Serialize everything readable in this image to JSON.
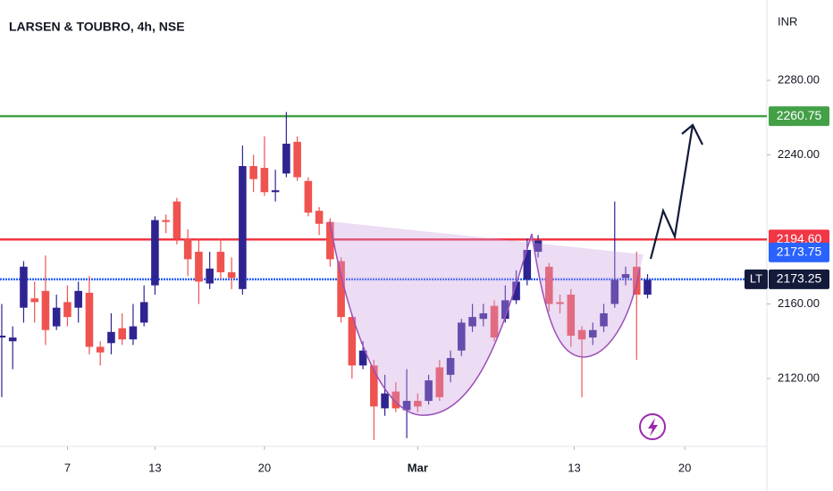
{
  "chart_data": {
    "type": "candlestick",
    "title": "LARSEN & TOUBRO, 4h, NSE",
    "currency": "INR",
    "symbol": "LT",
    "up_color": "#2e2491",
    "down_color": "#ef5350",
    "open": [
      2142,
      2140,
      2158,
      2163,
      2167,
      2148,
      2161,
      2158,
      2166,
      2137,
      2139,
      2147,
      2141,
      2150,
      2170,
      2205,
      2215,
      2195,
      2188,
      2171,
      2188,
      2177,
      2168,
      2234,
      2233,
      2220,
      2230,
      2247,
      2226,
      2210,
      2204,
      2183,
      2153,
      2127,
      2127,
      2104,
      2113,
      2103,
      2108,
      2108,
      2126,
      2122,
      2135,
      2148,
      2152,
      2159,
      2152,
      2162,
      2173,
      2188,
      2180,
      2161,
      2165,
      2146,
      2142,
      2148,
      2160,
      2174,
      2180,
      2165
    ],
    "high": [
      2160,
      2148,
      2183,
      2172,
      2186,
      2165,
      2170,
      2172,
      2175,
      2140,
      2155,
      2155,
      2160,
      2170,
      2207,
      2208,
      2217,
      2200,
      2195,
      2188,
      2195,
      2185,
      2245,
      2240,
      2250,
      2232,
      2263,
      2250,
      2228,
      2212,
      2206,
      2185,
      2155,
      2140,
      2130,
      2122,
      2118,
      2125,
      2112,
      2122,
      2130,
      2135,
      2152,
      2160,
      2160,
      2162,
      2170,
      2178,
      2195,
      2197,
      2182,
      2165,
      2168,
      2148,
      2150,
      2160,
      2215,
      2180,
      2188,
      2176
    ],
    "low": [
      2110,
      2125,
      2150,
      2150,
      2138,
      2146,
      2148,
      2150,
      2133,
      2127,
      2133,
      2138,
      2138,
      2148,
      2165,
      2198,
      2192,
      2175,
      2160,
      2168,
      2173,
      2168,
      2165,
      2220,
      2218,
      2215,
      2228,
      2226,
      2207,
      2197,
      2180,
      2150,
      2120,
      2125,
      2087,
      2100,
      2102,
      2088,
      2102,
      2106,
      2108,
      2118,
      2132,
      2145,
      2148,
      2140,
      2150,
      2160,
      2170,
      2185,
      2156,
      2155,
      2137,
      2110,
      2138,
      2145,
      2158,
      2170,
      2130,
      2163
    ],
    "close": [
      2143,
      2142,
      2180,
      2161,
      2146,
      2158,
      2153,
      2167,
      2137,
      2134,
      2145,
      2141,
      2148,
      2161,
      2205,
      2204,
      2195,
      2184,
      2172,
      2179,
      2177,
      2174,
      2234,
      2227,
      2220,
      2221,
      2246,
      2228,
      2209,
      2203,
      2184,
      2153,
      2127,
      2135,
      2105,
      2112,
      2104,
      2108,
      2105,
      2119,
      2110,
      2131,
      2150,
      2153,
      2155,
      2142,
      2162,
      2172,
      2189,
      2194,
      2160,
      2160,
      2143,
      2141,
      2146,
      2155,
      2173,
      2176,
      2165,
      2173
    ],
    "xlim": [
      -0.16,
      69.9
    ],
    "xticks": [
      {
        "value": 6,
        "label": "7"
      },
      {
        "value": 14,
        "label": "13"
      },
      {
        "value": 24,
        "label": "20"
      },
      {
        "value": 38,
        "label": "Mar"
      },
      {
        "value": 52.3,
        "label": "13"
      },
      {
        "value": 62.4,
        "label": "20"
      }
    ],
    "ylim": [
      2083.6,
      2323.1
    ],
    "yticks": [
      {
        "value": 2120,
        "label": "2120.00"
      },
      {
        "value": 2160,
        "label": "2160.00"
      },
      {
        "value": 2240,
        "label": "2240.00"
      },
      {
        "value": 2280,
        "label": "2280.00"
      }
    ],
    "levels": [
      {
        "value": 2260.75,
        "color": "#43a047"
      },
      {
        "value": 2194.6,
        "label": "2194.60",
        "color": "#f23645"
      },
      {
        "value": 2173.25,
        "color": "#2962ff"
      }
    ],
    "last_price": {
      "value": 2173.75,
      "color": "#2962ff"
    }
  }
}
